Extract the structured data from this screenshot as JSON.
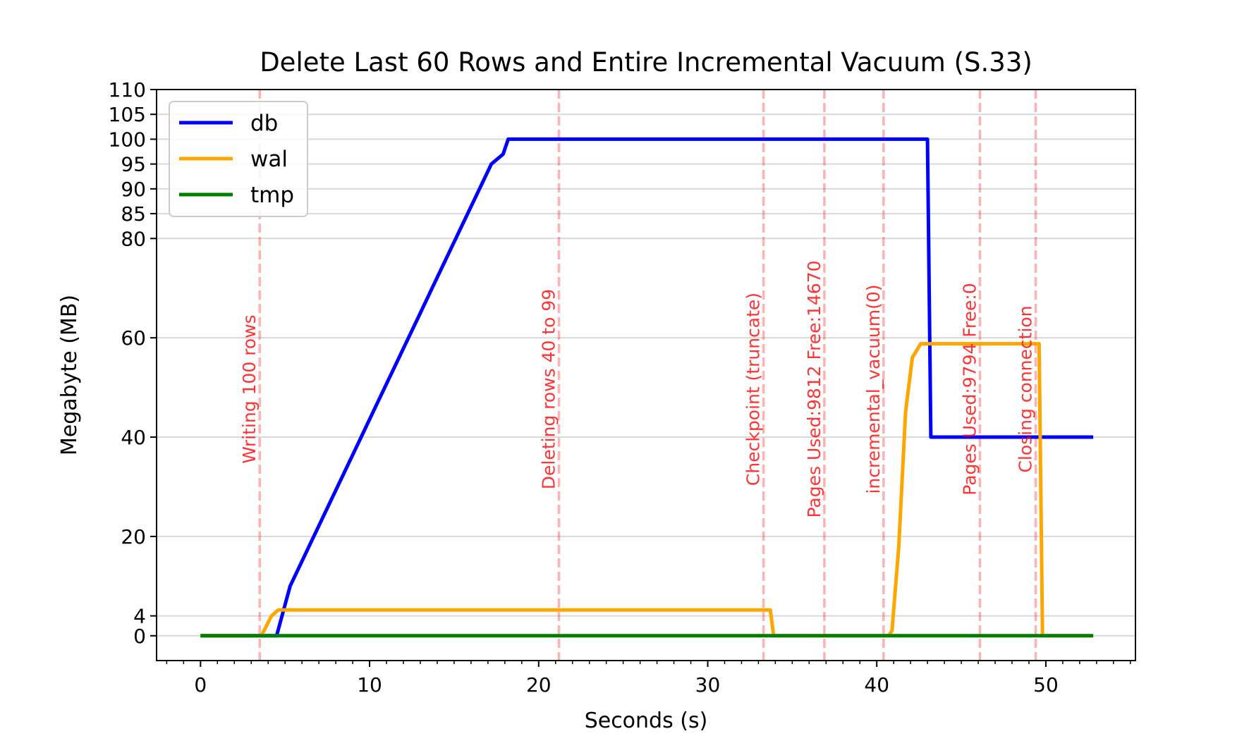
{
  "chart_data": {
    "type": "line",
    "title": "Delete Last 60 Rows and Entire Incremental Vacuum (S.33)",
    "xlabel": "Seconds (s)",
    "ylabel": "Megabyte (MB)",
    "xlim": [
      -2.6,
      55.3
    ],
    "ylim": [
      -5,
      110
    ],
    "x_ticks": [
      0,
      10,
      20,
      30,
      40,
      50
    ],
    "x_minor_step": 1,
    "y_ticks": [
      0,
      4,
      20,
      40,
      60,
      80,
      85,
      90,
      95,
      100,
      105,
      110
    ],
    "grid": "horizontal",
    "legend_position": "top-left",
    "series": [
      {
        "name": "db",
        "color": "#0000ff",
        "points": [
          [
            0,
            0
          ],
          [
            4.5,
            0
          ],
          [
            5.3,
            10
          ],
          [
            6.0,
            15
          ],
          [
            6.7,
            20
          ],
          [
            7.4,
            25
          ],
          [
            8.1,
            30
          ],
          [
            8.8,
            35
          ],
          [
            9.5,
            40
          ],
          [
            10.2,
            45
          ],
          [
            10.9,
            50
          ],
          [
            11.6,
            55
          ],
          [
            12.3,
            60
          ],
          [
            13.0,
            65
          ],
          [
            13.7,
            70
          ],
          [
            14.4,
            75
          ],
          [
            15.1,
            80
          ],
          [
            15.8,
            85
          ],
          [
            16.5,
            90
          ],
          [
            17.2,
            95
          ],
          [
            17.9,
            97
          ],
          [
            18.2,
            100
          ],
          [
            43.0,
            100
          ],
          [
            43.2,
            40
          ],
          [
            52.8,
            40
          ]
        ]
      },
      {
        "name": "wal",
        "color": "#ffa500",
        "points": [
          [
            0,
            0
          ],
          [
            3.6,
            0
          ],
          [
            4.2,
            4
          ],
          [
            4.6,
            5.2
          ],
          [
            33.7,
            5.2
          ],
          [
            33.9,
            0
          ],
          [
            40.7,
            0
          ],
          [
            40.9,
            1
          ],
          [
            41.3,
            18
          ],
          [
            41.7,
            45
          ],
          [
            42.1,
            56
          ],
          [
            42.6,
            58.8
          ],
          [
            49.6,
            58.8
          ],
          [
            49.8,
            0
          ],
          [
            52.8,
            0
          ]
        ]
      },
      {
        "name": "tmp",
        "color": "#008000",
        "points": [
          [
            0,
            0
          ],
          [
            52.8,
            0
          ]
        ]
      }
    ],
    "annotations": [
      {
        "x": 3.5,
        "text": "Writing 100 rows"
      },
      {
        "x": 21.2,
        "text": "Deleting rows 40 to 99"
      },
      {
        "x": 33.3,
        "text": "Checkpoint (truncate)"
      },
      {
        "x": 36.9,
        "text": "Pages Used:9812 Free:14670"
      },
      {
        "x": 40.4,
        "text": "incremental_vacuum(0)"
      },
      {
        "x": 46.1,
        "text": "Pages Used:9794 Free:0"
      },
      {
        "x": 49.4,
        "text": "Closing connection"
      }
    ],
    "annotation_color": "#ff0000"
  }
}
